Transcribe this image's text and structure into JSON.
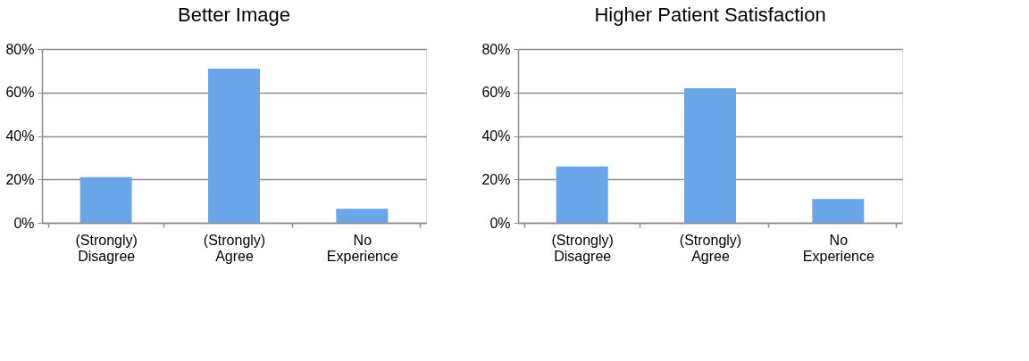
{
  "chart_data": [
    {
      "type": "bar",
      "title": "Better Image",
      "categories": [
        "(Strongly) Disagree",
        "(Strongly) Agree",
        "No Experience"
      ],
      "values": [
        21,
        71,
        6.5
      ],
      "color": "#69a5e8",
      "ylim": [
        0,
        80
      ],
      "yticks": [
        {
          "value": 0,
          "label": "0%"
        },
        {
          "value": 20,
          "label": "20%"
        },
        {
          "value": 40,
          "label": "40%"
        },
        {
          "value": 60,
          "label": "60%"
        },
        {
          "value": 80,
          "label": "80%"
        }
      ],
      "grid": "y"
    },
    {
      "type": "bar",
      "title": "Higher Patient Satisfaction",
      "categories": [
        "(Strongly) Disagree",
        "(Strongly) Agree",
        "No Experience"
      ],
      "values": [
        26,
        62,
        11
      ],
      "color": "#69a5e8",
      "ylim": [
        0,
        80
      ],
      "yticks": [
        {
          "value": 0,
          "label": "0%"
        },
        {
          "value": 20,
          "label": "20%"
        },
        {
          "value": 40,
          "label": "40%"
        },
        {
          "value": 60,
          "label": "60%"
        },
        {
          "value": 80,
          "label": "80%"
        }
      ],
      "grid": "y"
    }
  ]
}
